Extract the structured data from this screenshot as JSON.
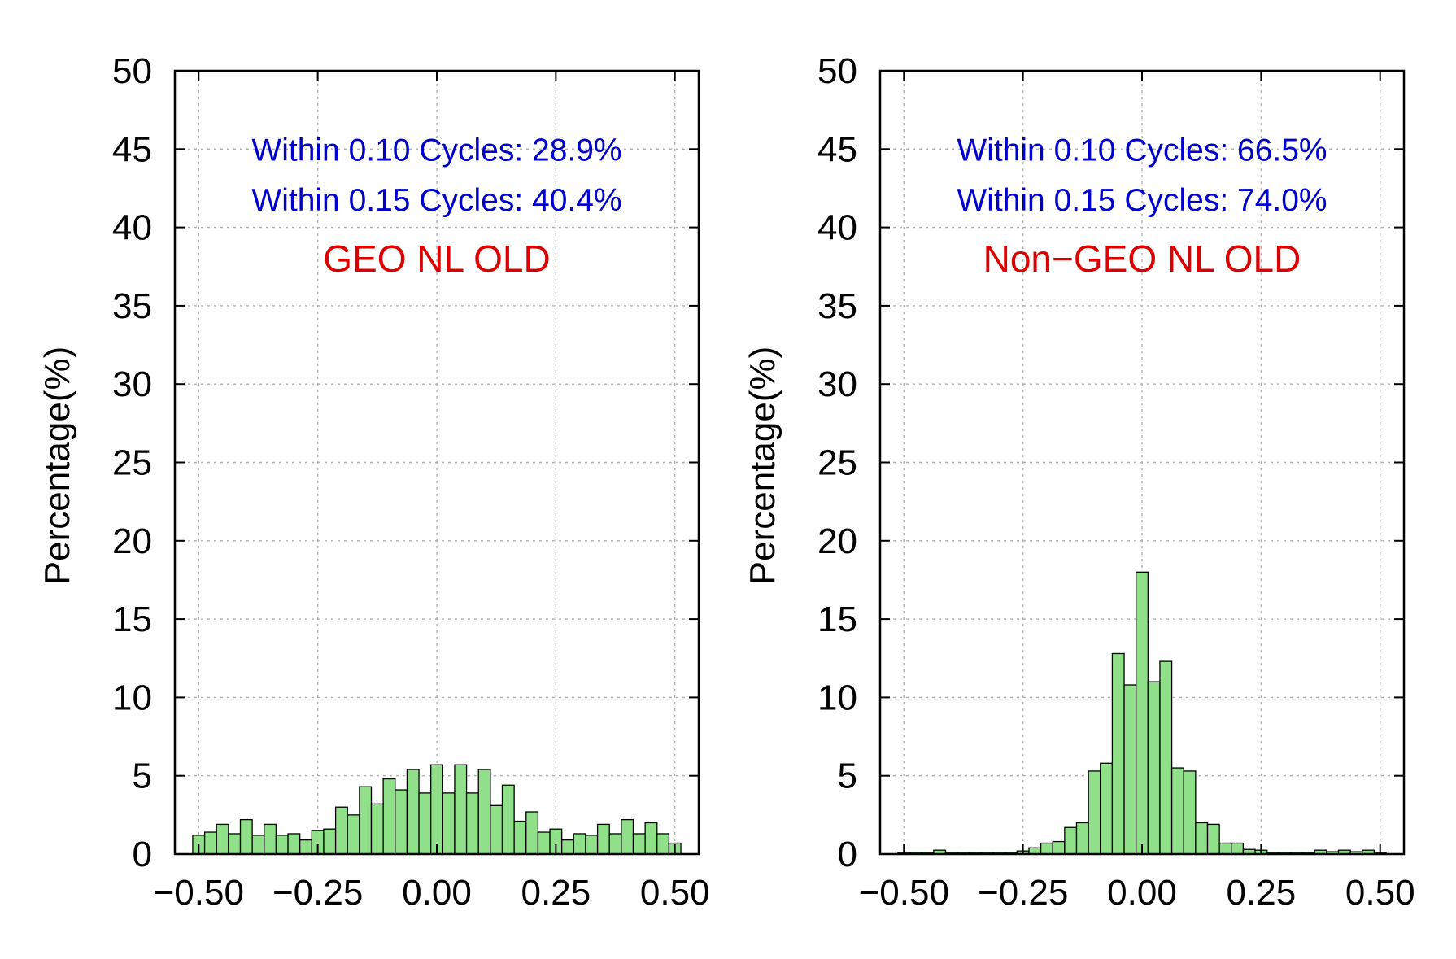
{
  "chart_data": [
    {
      "type": "bar",
      "title": "GEO NL OLD",
      "xlabel": "",
      "ylabel": "Percentage(%)",
      "xlim": [
        -0.55,
        0.55
      ],
      "ylim": [
        0,
        50
      ],
      "yticks": [
        0,
        5,
        10,
        15,
        20,
        25,
        30,
        35,
        40,
        45,
        50
      ],
      "ytick_labels": [
        "0",
        "5",
        "10",
        "15",
        "20",
        "25",
        "30",
        "35",
        "40",
        "45",
        "50"
      ],
      "xticks": [
        -0.5,
        -0.25,
        0.0,
        0.25,
        0.5
      ],
      "xtick_labels": [
        "−0.50",
        "−0.25",
        "0.00",
        "0.25",
        "0.50"
      ],
      "grid": true,
      "bar_color": "#90e08a",
      "annotations": [
        {
          "text": "Within 0.10 Cycles: 28.9%",
          "color": "#0000cc"
        },
        {
          "text": "Within 0.15 Cycles: 40.4%",
          "color": "#0000cc"
        }
      ],
      "title_color": "#dd0000",
      "bin_width": 0.025,
      "bin_centers": [
        -0.5,
        -0.475,
        -0.45,
        -0.425,
        -0.4,
        -0.375,
        -0.35,
        -0.325,
        -0.3,
        -0.275,
        -0.25,
        -0.225,
        -0.2,
        -0.175,
        -0.15,
        -0.125,
        -0.1,
        -0.075,
        -0.05,
        -0.025,
        0.0,
        0.025,
        0.05,
        0.075,
        0.1,
        0.125,
        0.15,
        0.175,
        0.2,
        0.225,
        0.25,
        0.275,
        0.3,
        0.325,
        0.35,
        0.375,
        0.4,
        0.425,
        0.45,
        0.475,
        0.5
      ],
      "values": [
        1.2,
        1.4,
        1.9,
        1.3,
        2.2,
        1.2,
        1.9,
        1.2,
        1.3,
        0.9,
        1.5,
        1.6,
        3.0,
        2.5,
        4.3,
        3.2,
        4.8,
        4.1,
        5.4,
        3.9,
        5.7,
        3.9,
        5.7,
        3.9,
        5.4,
        3.1,
        4.4,
        2.1,
        2.7,
        1.4,
        1.6,
        0.9,
        1.3,
        1.2,
        1.9,
        1.3,
        2.2,
        1.3,
        2.0,
        1.3,
        0.7
      ]
    },
    {
      "type": "bar",
      "title": "Non−GEO NL OLD",
      "xlabel": "",
      "ylabel": "Percentage(%)",
      "xlim": [
        -0.55,
        0.55
      ],
      "ylim": [
        0,
        50
      ],
      "yticks": [
        0,
        5,
        10,
        15,
        20,
        25,
        30,
        35,
        40,
        45,
        50
      ],
      "ytick_labels": [
        "0",
        "5",
        "10",
        "15",
        "20",
        "25",
        "30",
        "35",
        "40",
        "45",
        "50"
      ],
      "xticks": [
        -0.5,
        -0.25,
        0.0,
        0.25,
        0.5
      ],
      "xtick_labels": [
        "−0.50",
        "−0.25",
        "0.00",
        "0.25",
        "0.50"
      ],
      "grid": true,
      "bar_color": "#90e08a",
      "annotations": [
        {
          "text": "Within 0.10 Cycles: 66.5%",
          "color": "#0000cc"
        },
        {
          "text": "Within 0.15 Cycles: 74.0%",
          "color": "#0000cc"
        }
      ],
      "title_color": "#dd0000",
      "bin_width": 0.025,
      "bin_centers": [
        -0.5,
        -0.475,
        -0.45,
        -0.425,
        -0.4,
        -0.375,
        -0.35,
        -0.325,
        -0.3,
        -0.275,
        -0.25,
        -0.225,
        -0.2,
        -0.175,
        -0.15,
        -0.125,
        -0.1,
        -0.075,
        -0.05,
        -0.025,
        0.0,
        0.025,
        0.05,
        0.075,
        0.1,
        0.125,
        0.15,
        0.175,
        0.2,
        0.225,
        0.25,
        0.275,
        0.3,
        0.325,
        0.35,
        0.375,
        0.4,
        0.425,
        0.45,
        0.475,
        0.5
      ],
      "values": [
        0.1,
        0.1,
        0.1,
        0.25,
        0.1,
        0.1,
        0.1,
        0.1,
        0.1,
        0.1,
        0.2,
        0.4,
        0.7,
        0.8,
        1.7,
        2.0,
        5.3,
        5.8,
        12.8,
        10.8,
        18.0,
        11.0,
        12.3,
        5.5,
        5.3,
        2.0,
        1.9,
        0.7,
        0.7,
        0.3,
        0.25,
        0.1,
        0.1,
        0.1,
        0.1,
        0.25,
        0.15,
        0.25,
        0.15,
        0.25,
        0.1
      ]
    }
  ]
}
